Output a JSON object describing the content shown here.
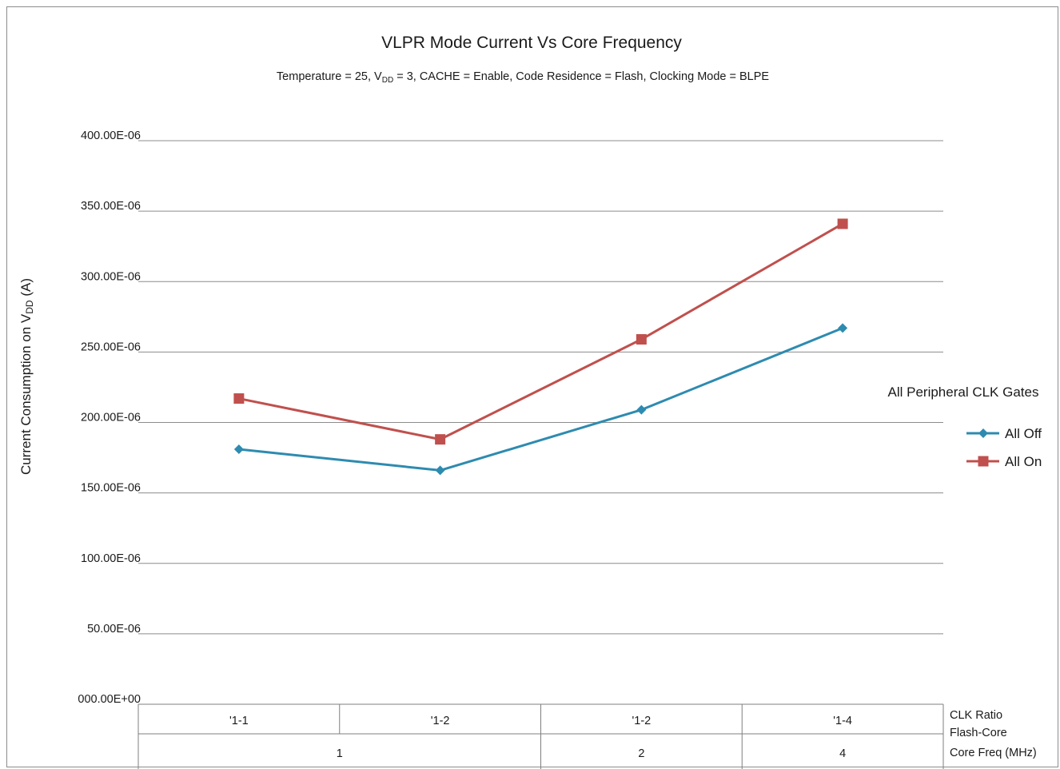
{
  "chart_data": {
    "type": "line",
    "title": "VLPR Mode Current Vs Core Frequency",
    "subtitle": {
      "before_sub": "Temperature = 25, V",
      "sub": "DD",
      "after_sub": " = 3, CACHE = Enable, Code Residence = Flash, Clocking Mode = BLPE"
    },
    "ylabel": {
      "main": "Current Consumption on V",
      "sub": "DD",
      "unit": " (A)"
    },
    "ylim": [
      0,
      0.0004
    ],
    "y_ticks": [
      {
        "value": 0.0004,
        "label": "400.00E-06"
      },
      {
        "value": 0.00035,
        "label": "350.00E-06"
      },
      {
        "value": 0.0003,
        "label": "300.00E-06"
      },
      {
        "value": 0.00025,
        "label": "250.00E-06"
      },
      {
        "value": 0.0002,
        "label": "200.00E-06"
      },
      {
        "value": 0.00015,
        "label": "150.00E-06"
      },
      {
        "value": 0.0001,
        "label": "100.00E-06"
      },
      {
        "value": 5e-05,
        "label": "50.00E-06"
      },
      {
        "value": 0,
        "label": "000.00E+00"
      }
    ],
    "grid": true,
    "categories": [
      "'1-1",
      "'1-2",
      "'1-2",
      "'1-4"
    ],
    "category_groups": [
      {
        "label": "1",
        "span": 2
      },
      {
        "label": "2",
        "span": 1
      },
      {
        "label": "4",
        "span": 1
      }
    ],
    "axis_level_labels": [
      "CLK Ratio",
      "Flash-Core",
      "Core Freq (MHz)"
    ],
    "legend": {
      "title": "All Peripheral CLK Gates",
      "position": "right"
    },
    "series": [
      {
        "name": "All Off",
        "color": "#2e8bb0",
        "marker": "diamond",
        "values": [
          0.000181,
          0.000166,
          0.000209,
          0.000267
        ]
      },
      {
        "name": "All On",
        "color": "#c0504d",
        "marker": "square",
        "values": [
          0.000217,
          0.000188,
          0.000259,
          0.000341
        ]
      }
    ]
  }
}
